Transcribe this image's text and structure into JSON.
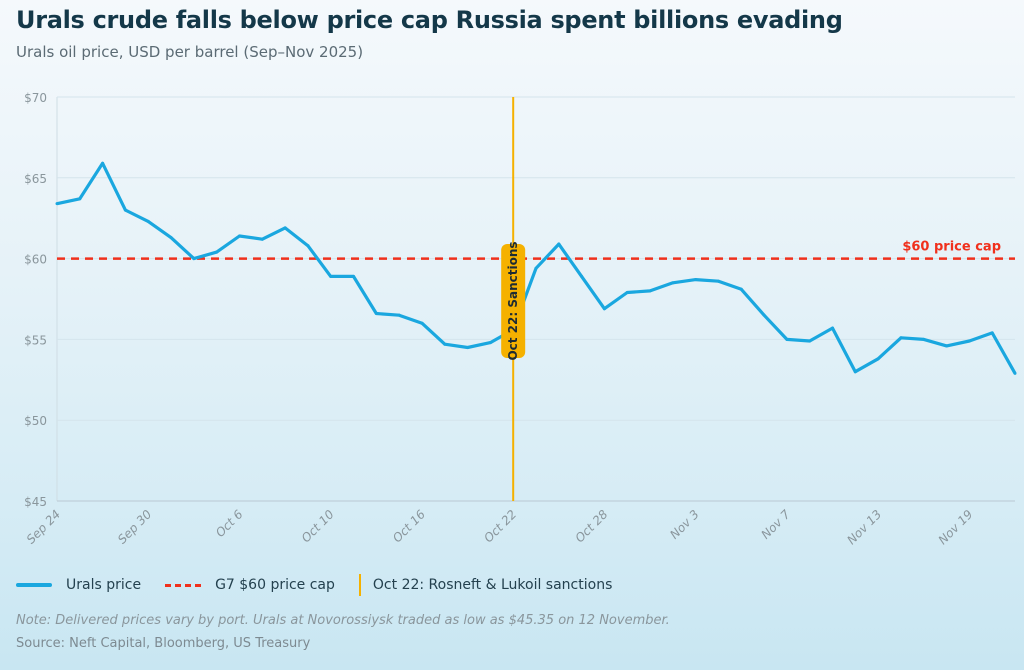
{
  "title": "Urals crude falls below price cap Russia spent billions evading",
  "subtitle": "Urals oil price, USD per barrel (Sep–Nov 2025)",
  "chart_data": {
    "type": "line",
    "title": "Urals crude falls below price cap Russia spent billions evading",
    "subtitle": "Urals oil price, USD per barrel (Sep–Nov 2025)",
    "x": [
      "Sep 24",
      "Sep 25",
      "Sep 26",
      "Sep 29",
      "Sep 30",
      "Oct 1",
      "Oct 2",
      "Oct 3",
      "Oct 6",
      "Oct 7",
      "Oct 8",
      "Oct 9",
      "Oct 10",
      "Oct 13",
      "Oct 14",
      "Oct 15",
      "Oct 16",
      "Oct 17",
      "Oct 20",
      "Oct 21",
      "Oct 22",
      "Oct 23",
      "Oct 24",
      "Oct 27",
      "Oct 28",
      "Oct 29",
      "Oct 30",
      "Oct 31",
      "Nov 3",
      "Nov 4",
      "Nov 5",
      "Nov 6",
      "Nov 7",
      "Nov 10",
      "Nov 11",
      "Nov 12",
      "Nov 13",
      "Nov 14",
      "Nov 17",
      "Nov 18",
      "Nov 19",
      "Nov 20",
      "Nov 21"
    ],
    "x_tick_labels": [
      "Sep 24",
      "Sep 30",
      "Oct 6",
      "Oct 10",
      "Oct 16",
      "Oct 22",
      "Oct 28",
      "Nov 3",
      "Nov 7",
      "Nov 13",
      "Nov 19"
    ],
    "series": [
      {
        "name": "Urals price",
        "color": "#1aa7df",
        "values": [
          63.4,
          63.7,
          65.9,
          63.0,
          62.3,
          61.3,
          60.0,
          60.4,
          61.4,
          61.2,
          61.9,
          60.8,
          58.9,
          58.9,
          56.6,
          56.5,
          56.0,
          54.7,
          54.5,
          54.8,
          55.6,
          59.4,
          60.9,
          58.9,
          56.9,
          57.9,
          58.0,
          58.5,
          58.7,
          58.6,
          58.1,
          56.5,
          55.0,
          54.9,
          55.7,
          53.0,
          53.8,
          55.1,
          55.0,
          54.6,
          54.9,
          55.4,
          52.9
        ]
      }
    ],
    "y_ticks": [
      "$45",
      "$50",
      "$55",
      "$60",
      "$65",
      "$70"
    ],
    "ylim": [
      45,
      70
    ],
    "grid": "horizontal",
    "reference_line": {
      "value": 60,
      "label": "$60 price cap",
      "legend": "G7 $60 price cap",
      "color": "#f0301c",
      "style": "dashed"
    },
    "event_line": {
      "x": "Oct 22",
      "label": "Oct 22: Sanctions",
      "legend": "Oct 22: Rosneft & Lukoil sanctions",
      "color": "#f5b100"
    },
    "legend_position": "bottom-left",
    "xlabel": "",
    "ylabel": ""
  },
  "note": "Note: Delivered prices vary by port. Urals at Novorossiysk traded as low as $45.35 on 12 November.",
  "source": "Source: Neft Capital, Bloomberg, US Treasury"
}
